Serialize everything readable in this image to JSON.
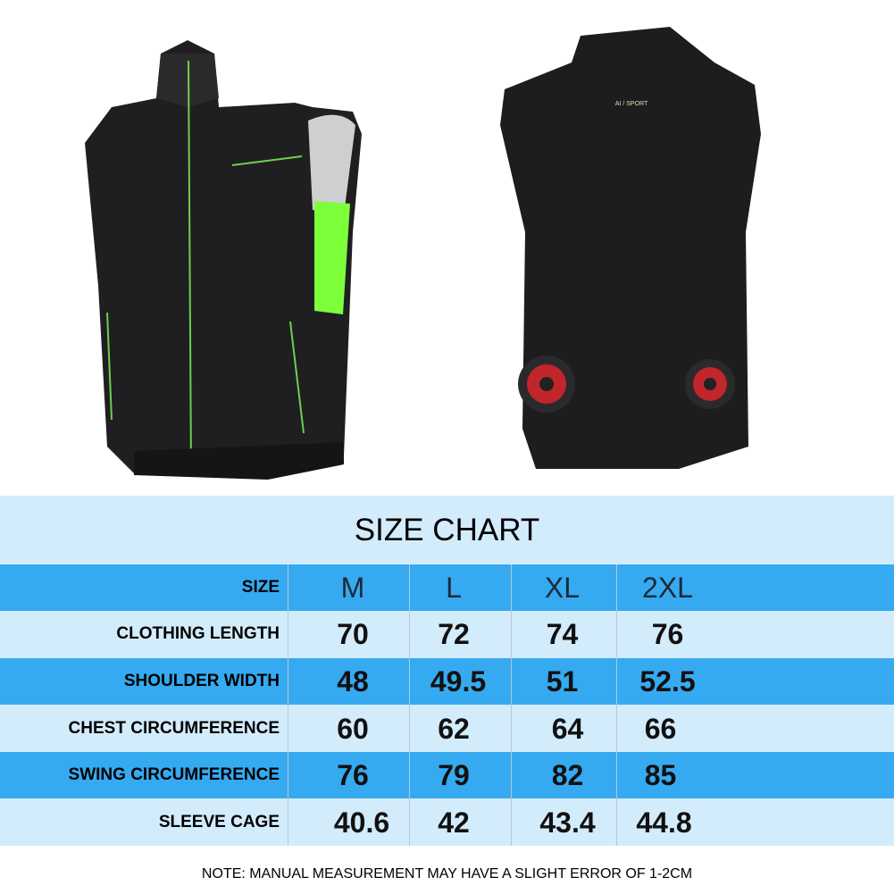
{
  "back_label": "AI / SPORT",
  "size_chart": {
    "title": "SIZE CHART",
    "header": {
      "label": "SIZE",
      "sizes": [
        "M",
        "L",
        "XL",
        "2XL"
      ]
    },
    "rows": [
      {
        "label": "CLOTHING LENGTH",
        "values": [
          "70",
          "72",
          "74",
          "76"
        ]
      },
      {
        "label": "SHOULDER WIDTH",
        "values": [
          "48",
          "49.5",
          "51",
          "52.5"
        ]
      },
      {
        "label": "CHEST CIRCUMFERENCE",
        "values": [
          "60",
          "62",
          "64",
          "66"
        ]
      },
      {
        "label": "SWING CIRCUMFERENCE",
        "values": [
          "76",
          "79",
          "82",
          "85"
        ]
      },
      {
        "label": "SLEEVE CAGE",
        "values": [
          "40.6",
          "42",
          "43.4",
          "44.8"
        ]
      }
    ],
    "note": "NOTE: MANUAL MEASUREMENT MAY HAVE A SLIGHT ERROR OF 1-2CM"
  },
  "colors": {
    "header_blue": "#36aaf0",
    "light_blue": "#d3ecfb",
    "accent_green": "#7dff3a",
    "fan_red": "#c0262a"
  }
}
